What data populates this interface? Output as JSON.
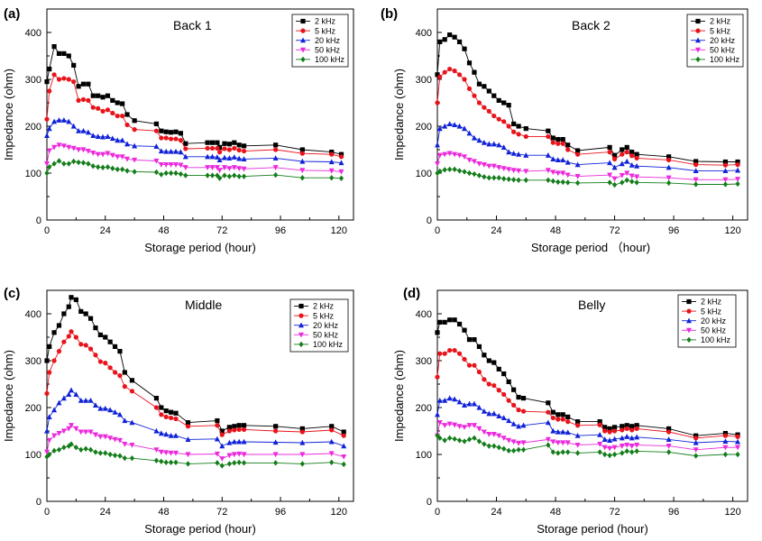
{
  "chart_data": [
    {
      "type": "line",
      "panel_letter": "(a)",
      "title": "Back 1",
      "xlabel": "Storage period (hour)",
      "ylabel": "Impedance (ohm)",
      "xlim": [
        0,
        126
      ],
      "ylim": [
        0,
        450
      ],
      "xticks": [
        0,
        24,
        48,
        72,
        96,
        120
      ],
      "yticks": [
        0,
        100,
        200,
        300,
        400
      ],
      "legend_placement": "top-right",
      "x": [
        0,
        1,
        3,
        5,
        7,
        9,
        11,
        13,
        15,
        17,
        19,
        21,
        23,
        25,
        27,
        29,
        31,
        33,
        36,
        45,
        47,
        49,
        51,
        53,
        55,
        57,
        66,
        68,
        70,
        71,
        73,
        75,
        77,
        79,
        81,
        94,
        105,
        117,
        121
      ],
      "series": [
        {
          "name": "2 kHz",
          "color": "#000000",
          "marker": "square",
          "values": [
            295,
            322,
            370,
            355,
            355,
            350,
            330,
            285,
            290,
            290,
            265,
            265,
            262,
            265,
            255,
            250,
            248,
            225,
            212,
            205,
            190,
            188,
            187,
            188,
            185,
            163,
            165,
            165,
            165,
            155,
            163,
            162,
            165,
            160,
            158,
            160,
            150,
            145,
            140
          ]
        },
        {
          "name": "5 kHz",
          "color": "#e8131b",
          "marker": "circle",
          "values": [
            215,
            275,
            310,
            300,
            302,
            300,
            295,
            255,
            257,
            255,
            240,
            238,
            232,
            235,
            228,
            222,
            222,
            203,
            193,
            190,
            175,
            175,
            173,
            173,
            170,
            152,
            153,
            153,
            153,
            145,
            152,
            150,
            153,
            149,
            147,
            150,
            142,
            140,
            135
          ]
        },
        {
          "name": "20 kHz",
          "color": "#1022d8",
          "marker": "triangle-up",
          "values": [
            180,
            195,
            210,
            213,
            213,
            210,
            200,
            190,
            190,
            187,
            180,
            178,
            177,
            178,
            174,
            170,
            170,
            162,
            158,
            157,
            147,
            146,
            146,
            146,
            145,
            135,
            135,
            135,
            134,
            128,
            133,
            132,
            134,
            131,
            130,
            132,
            125,
            124,
            122
          ]
        },
        {
          "name": "50 kHz",
          "color": "#ea2bdc",
          "marker": "triangle-down",
          "values": [
            120,
            148,
            155,
            160,
            158,
            155,
            153,
            150,
            150,
            147,
            143,
            140,
            140,
            142,
            138,
            135,
            135,
            130,
            128,
            126,
            118,
            118,
            118,
            118,
            117,
            112,
            112,
            112,
            112,
            106,
            112,
            110,
            112,
            110,
            109,
            112,
            106,
            105,
            103
          ]
        },
        {
          "name": "100 kHz",
          "color": "#137d1a",
          "marker": "diamond",
          "values": [
            100,
            113,
            120,
            126,
            120,
            120,
            125,
            123,
            122,
            120,
            115,
            113,
            112,
            113,
            110,
            108,
            108,
            105,
            103,
            102,
            97,
            100,
            100,
            100,
            98,
            95,
            95,
            95,
            95,
            89,
            95,
            93,
            95,
            93,
            93,
            96,
            90,
            90,
            89
          ]
        }
      ]
    },
    {
      "type": "line",
      "panel_letter": "(b)",
      "title": "Back 2",
      "xlabel": "Storage period （hour)",
      "ylabel": "Impedance (ohm)",
      "xlim": [
        0,
        126
      ],
      "ylim": [
        0,
        450
      ],
      "xticks": [
        0,
        24,
        48,
        72,
        96,
        120
      ],
      "yticks": [
        0,
        100,
        200,
        300,
        400
      ],
      "legend_placement": "top-right",
      "x": [
        0,
        1,
        3,
        5,
        7,
        9,
        11,
        13,
        15,
        17,
        19,
        21,
        23,
        25,
        27,
        29,
        31,
        33,
        36,
        45,
        47,
        49,
        51,
        53,
        57,
        70,
        72,
        75,
        77,
        79,
        81,
        94,
        105,
        117,
        122
      ],
      "series": [
        {
          "name": "2 kHz",
          "color": "#000000",
          "marker": "square",
          "values": [
            310,
            380,
            385,
            395,
            390,
            380,
            365,
            335,
            315,
            290,
            285,
            275,
            265,
            255,
            250,
            245,
            205,
            200,
            195,
            190,
            175,
            172,
            172,
            160,
            148,
            155,
            138,
            150,
            155,
            145,
            140,
            135,
            125,
            124,
            124
          ]
        },
        {
          "name": "5 kHz",
          "color": "#e8131b",
          "marker": "circle",
          "values": [
            250,
            305,
            315,
            322,
            318,
            310,
            300,
            280,
            265,
            250,
            240,
            232,
            222,
            215,
            210,
            200,
            188,
            183,
            178,
            178,
            165,
            163,
            163,
            150,
            140,
            145,
            130,
            140,
            145,
            137,
            132,
            128,
            118,
            117,
            118
          ]
        },
        {
          "name": "20 kHz",
          "color": "#1022d8",
          "marker": "triangle-up",
          "values": [
            160,
            195,
            200,
            205,
            203,
            200,
            195,
            185,
            175,
            170,
            165,
            162,
            162,
            160,
            155,
            145,
            142,
            140,
            138,
            138,
            130,
            128,
            128,
            123,
            118,
            122,
            112,
            120,
            125,
            117,
            115,
            112,
            105,
            105,
            106
          ]
        },
        {
          "name": "50 kHz",
          "color": "#ea2bdc",
          "marker": "triangle-down",
          "values": [
            120,
            138,
            140,
            142,
            140,
            138,
            135,
            128,
            125,
            120,
            118,
            115,
            115,
            112,
            110,
            108,
            106,
            105,
            104,
            106,
            102,
            100,
            100,
            96,
            93,
            96,
            88,
            95,
            100,
            94,
            92,
            90,
            86,
            86,
            87
          ]
        },
        {
          "name": "100 kHz",
          "color": "#137d1a",
          "marker": "diamond",
          "values": [
            100,
            104,
            107,
            108,
            108,
            105,
            103,
            100,
            98,
            95,
            92,
            90,
            90,
            90,
            88,
            87,
            86,
            85,
            85,
            85,
            83,
            81,
            81,
            80,
            79,
            80,
            75,
            80,
            85,
            82,
            80,
            79,
            76,
            76,
            77
          ]
        }
      ]
    },
    {
      "type": "line",
      "panel_letter": "(c)",
      "title": "Middle",
      "xlabel": "Storage period (hour)",
      "ylabel": "Impedance (ohm)",
      "xlim": [
        0,
        126
      ],
      "ylim": [
        0,
        450
      ],
      "xticks": [
        0,
        24,
        48,
        72,
        96,
        120
      ],
      "yticks": [
        0,
        100,
        200,
        300,
        400
      ],
      "legend_placement": "top-right",
      "x": [
        0,
        1,
        3,
        5,
        7,
        9,
        10,
        12,
        14,
        16,
        18,
        20,
        22,
        24,
        26,
        28,
        30,
        32,
        35,
        45,
        47,
        49,
        51,
        53,
        58,
        70,
        72,
        75,
        77,
        79,
        81,
        94,
        105,
        117,
        122
      ],
      "series": [
        {
          "name": "2 kHz",
          "color": "#000000",
          "marker": "square",
          "values": [
            300,
            330,
            360,
            375,
            400,
            415,
            435,
            430,
            405,
            400,
            390,
            370,
            355,
            350,
            340,
            330,
            320,
            275,
            258,
            220,
            200,
            193,
            190,
            188,
            168,
            172,
            150,
            158,
            160,
            162,
            162,
            160,
            155,
            160,
            148
          ]
        },
        {
          "name": "5 kHz",
          "color": "#e8131b",
          "marker": "circle",
          "values": [
            230,
            275,
            300,
            320,
            340,
            352,
            362,
            350,
            335,
            333,
            325,
            312,
            298,
            295,
            285,
            275,
            268,
            245,
            235,
            200,
            185,
            180,
            178,
            176,
            160,
            162,
            142,
            150,
            152,
            153,
            153,
            150,
            148,
            152,
            140
          ]
        },
        {
          "name": "20 kHz",
          "color": "#1022d8",
          "marker": "triangle-up",
          "values": [
            150,
            180,
            195,
            210,
            220,
            228,
            237,
            228,
            215,
            215,
            215,
            205,
            198,
            198,
            195,
            190,
            185,
            172,
            168,
            150,
            145,
            143,
            140,
            140,
            132,
            133,
            118,
            125,
            127,
            127,
            127,
            126,
            125,
            127,
            118
          ]
        },
        {
          "name": "50 kHz",
          "color": "#ea2bdc",
          "marker": "triangle-down",
          "values": [
            105,
            130,
            140,
            145,
            150,
            155,
            162,
            155,
            148,
            148,
            148,
            142,
            138,
            138,
            135,
            132,
            130,
            122,
            120,
            110,
            105,
            104,
            103,
            103,
            100,
            101,
            91,
            98,
            100,
            101,
            100,
            100,
            100,
            102,
            95
          ]
        },
        {
          "name": "100 kHz",
          "color": "#137d1a",
          "marker": "diamond",
          "values": [
            95,
            100,
            108,
            110,
            115,
            118,
            122,
            115,
            110,
            112,
            110,
            105,
            103,
            103,
            100,
            98,
            97,
            92,
            92,
            87,
            85,
            83,
            83,
            83,
            80,
            82,
            76,
            80,
            82,
            83,
            82,
            82,
            80,
            83,
            79
          ]
        }
      ]
    },
    {
      "type": "line",
      "panel_letter": "(d)",
      "title": "Belly",
      "xlabel": "Storage period (hour)",
      "ylabel": "Impedance (ohm)",
      "xlim": [
        0,
        126
      ],
      "ylim": [
        0,
        450
      ],
      "xticks": [
        0,
        24,
        48,
        72,
        96,
        120
      ],
      "yticks": [
        0,
        100,
        200,
        300,
        400
      ],
      "legend_placement": "top-right",
      "x": [
        0,
        1,
        3,
        5,
        7,
        9,
        11,
        13,
        15,
        17,
        19,
        21,
        23,
        25,
        27,
        29,
        31,
        33,
        35,
        45,
        47,
        49,
        51,
        53,
        57,
        66,
        68,
        70,
        72,
        75,
        77,
        79,
        81,
        94,
        105,
        117,
        122
      ],
      "series": [
        {
          "name": "2 kHz",
          "color": "#000000",
          "marker": "square",
          "values": [
            360,
            382,
            382,
            387,
            387,
            378,
            365,
            345,
            345,
            330,
            312,
            300,
            296,
            282,
            272,
            255,
            238,
            222,
            220,
            210,
            190,
            185,
            185,
            180,
            170,
            170,
            158,
            155,
            158,
            160,
            162,
            160,
            162,
            155,
            140,
            145,
            142
          ]
        },
        {
          "name": "5 kHz",
          "color": "#e8131b",
          "marker": "circle",
          "values": [
            265,
            315,
            315,
            322,
            322,
            315,
            303,
            290,
            290,
            276,
            260,
            250,
            247,
            237,
            228,
            215,
            205,
            195,
            192,
            190,
            178,
            175,
            175,
            170,
            162,
            163,
            150,
            148,
            150,
            152,
            155,
            152,
            155,
            148,
            135,
            140,
            138
          ]
        },
        {
          "name": "20 kHz",
          "color": "#1022d8",
          "marker": "triangle-up",
          "values": [
            185,
            215,
            215,
            220,
            218,
            212,
            205,
            208,
            208,
            200,
            192,
            187,
            187,
            182,
            178,
            172,
            165,
            160,
            162,
            168,
            150,
            148,
            148,
            147,
            140,
            142,
            132,
            130,
            133,
            135,
            138,
            135,
            137,
            132,
            125,
            128,
            127
          ]
        },
        {
          "name": "50 kHz",
          "color": "#ea2bdc",
          "marker": "triangle-down",
          "values": [
            140,
            168,
            162,
            165,
            163,
            160,
            158,
            162,
            162,
            155,
            148,
            143,
            143,
            140,
            135,
            130,
            127,
            124,
            125,
            132,
            127,
            125,
            125,
            125,
            120,
            122,
            115,
            113,
            115,
            118,
            120,
            118,
            120,
            118,
            110,
            115,
            115
          ]
        },
        {
          "name": "100 kHz",
          "color": "#137d1a",
          "marker": "diamond",
          "values": [
            140,
            135,
            130,
            135,
            133,
            130,
            128,
            132,
            135,
            128,
            122,
            118,
            118,
            115,
            112,
            108,
            108,
            110,
            110,
            120,
            105,
            103,
            105,
            105,
            103,
            105,
            100,
            98,
            100,
            103,
            107,
            105,
            107,
            105,
            97,
            100,
            100
          ]
        }
      ]
    }
  ]
}
